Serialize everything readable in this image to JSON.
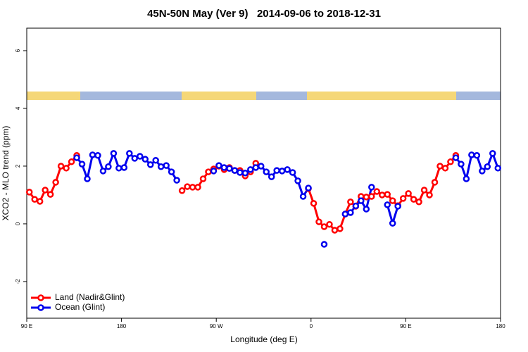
{
  "chart_data": {
    "type": "line",
    "title": "45N-50N May (Ver 9)   2014-09-06 to 2018-12-31",
    "x_label": "Longitude (deg E)",
    "y_label": "XCO2 - MLO trend (ppm)",
    "x": [
      92.5,
      97.5,
      102.5,
      107.5,
      112.5,
      117.5,
      122.5,
      127.5,
      132.5,
      137.5,
      142.5,
      147.5,
      152.5,
      157.5,
      162.5,
      167.5,
      172.5,
      177.5,
      182.5,
      187.5,
      192.5,
      197.5,
      202.5,
      207.5,
      212.5,
      217.5,
      222.5,
      227.5,
      232.5,
      237.5,
      242.5,
      247.5,
      252.5,
      257.5,
      262.5,
      267.5,
      272.5,
      277.5,
      282.5,
      287.5,
      292.5,
      297.5,
      302.5,
      307.5,
      312.5,
      317.5,
      322.5,
      327.5,
      332.5,
      337.5,
      342.5,
      347.5,
      352.5,
      357.5,
      362.5,
      367.5,
      372.5,
      377.5,
      382.5,
      387.5,
      392.5,
      397.5,
      402.5,
      407.5,
      412.5,
      417.5,
      422.5,
      427.5,
      432.5,
      437.5,
      442.5,
      447.5,
      452.5,
      457.5,
      462.5,
      467.5,
      472.5,
      477.5,
      482.5,
      487.5,
      492.5,
      497.5,
      502.5,
      507.5,
      512.5,
      517.5,
      522.5,
      527.5,
      532.5,
      537.5
    ],
    "series": [
      {
        "name": "Land (Nadir&Glint)",
        "color": "#ff0000",
        "values": [
          1.1,
          0.85,
          0.78,
          1.17,
          1.02,
          1.44,
          2.0,
          1.93,
          2.15,
          2.37,
          null,
          null,
          null,
          null,
          null,
          null,
          null,
          null,
          null,
          null,
          null,
          null,
          null,
          null,
          null,
          null,
          null,
          null,
          null,
          1.15,
          1.29,
          1.27,
          1.27,
          1.56,
          1.8,
          1.9,
          2.0,
          1.88,
          1.95,
          1.85,
          1.85,
          1.66,
          1.8,
          2.1,
          null,
          null,
          null,
          null,
          null,
          null,
          null,
          null,
          null,
          1.22,
          0.71,
          0.07,
          -0.1,
          -0.02,
          -0.22,
          -0.17,
          0.34,
          0.76,
          0.61,
          0.95,
          0.93,
          0.95,
          1.12,
          1.0,
          1.02,
          0.8,
          0.63,
          0.88,
          1.05,
          0.85,
          0.76,
          1.17,
          1.0,
          1.44,
          2.0,
          1.93,
          2.15,
          2.37,
          null,
          null,
          null,
          null,
          null,
          null,
          null,
          null
        ]
      },
      {
        "name": "Ocean (Glint)",
        "color": "#0000ee",
        "values": [
          null,
          null,
          null,
          null,
          null,
          null,
          null,
          null,
          null,
          2.29,
          2.07,
          1.56,
          2.39,
          2.37,
          1.83,
          1.98,
          2.44,
          1.93,
          1.95,
          2.44,
          2.27,
          2.34,
          2.24,
          2.05,
          2.2,
          1.98,
          2.02,
          1.8,
          1.51,
          null,
          null,
          null,
          null,
          null,
          null,
          1.83,
          2.02,
          1.95,
          1.92,
          1.85,
          1.78,
          1.76,
          1.88,
          1.95,
          2.0,
          1.8,
          1.63,
          1.85,
          1.83,
          1.88,
          1.78,
          1.49,
          0.95,
          1.24,
          null,
          null,
          -0.71,
          null,
          null,
          null,
          0.34,
          0.39,
          0.62,
          0.8,
          0.51,
          1.27,
          null,
          null,
          0.66,
          0.02,
          0.61,
          null,
          null,
          null,
          null,
          null,
          null,
          null,
          null,
          null,
          null,
          2.29,
          2.07,
          1.56,
          2.39,
          2.37,
          1.83,
          1.98,
          2.44,
          1.93
        ]
      }
    ],
    "xlim": [
      90,
      540
    ],
    "xticks": [
      {
        "value": 90,
        "label": "90 E"
      },
      180,
      {
        "value": 270,
        "label": "90 W"
      },
      {
        "value": 360,
        "label": "0"
      },
      {
        "value": 450,
        "label": "90 E"
      },
      {
        "value": 540,
        "label": "180"
      }
    ],
    "ylim": [
      -3.27,
      6.78
    ],
    "yticks": [
      -2,
      0,
      2,
      4,
      6
    ],
    "legend": "bottom left",
    "grid": false
  }
}
